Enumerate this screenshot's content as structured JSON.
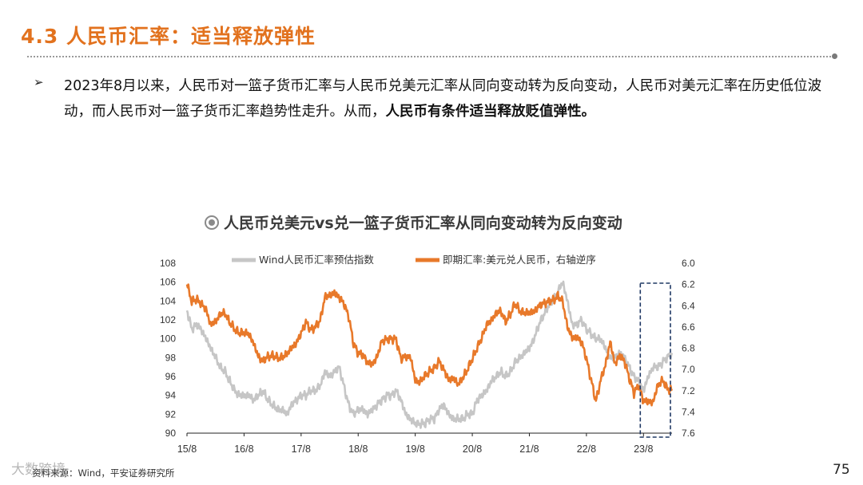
{
  "slide": {
    "title": "4.3 人民币汇率：适当释放弹性",
    "bullet_plain": "2023年8月以来，人民币对一篮子货币汇率与人民币兑美元汇率从同向变动转为反向变动，人民币对美元汇率在历史低位波动，而人民币对一篮子货币汇率趋势性走升。从而，",
    "bullet_emphasis": "人民币有条件适当释放贬值弹性。",
    "source_note": "资料来源：Wind，平安证券研究所",
    "watermark": "大数跨境",
    "page_number": "75"
  },
  "colors": {
    "accent": "#e2721e",
    "series_index": "#c6c6c6",
    "series_spot": "#e8792a",
    "highlight_box": "#1f3864"
  },
  "chart_data": {
    "type": "line",
    "title": "人民币兑美元vs兑一篮子货币汇率从同向变动转为反向变动",
    "x_ticks": [
      "15/8",
      "16/8",
      "17/8",
      "18/8",
      "19/8",
      "20/8",
      "21/8",
      "22/8",
      "23/8"
    ],
    "x_range": [
      "2015-08",
      "2024-02"
    ],
    "y_left": {
      "ticks": [
        "108",
        "106",
        "104",
        "102",
        "100",
        "98",
        "96",
        "94",
        "92",
        "90"
      ],
      "range": [
        90,
        108
      ]
    },
    "y_right": {
      "ticks": [
        "6.0",
        "6.2",
        "6.4",
        "6.6",
        "6.8",
        "7.0",
        "7.2",
        "7.4",
        "7.6"
      ],
      "range": [
        6.0,
        7.6
      ],
      "inverted": true
    },
    "legend_placement": "top",
    "grid": false,
    "series": [
      {
        "name": "Wind人民币汇率预估指数",
        "axis": "left",
        "points": [
          [
            "2015-08",
            103.0
          ],
          [
            "2015-09",
            101.0
          ],
          [
            "2015-10",
            101.5
          ],
          [
            "2015-11",
            101.0
          ],
          [
            "2015-12",
            100.0
          ],
          [
            "2016-01",
            99.0
          ],
          [
            "2016-02",
            98.0
          ],
          [
            "2016-03",
            97.0
          ],
          [
            "2016-04",
            96.5
          ],
          [
            "2016-05",
            95.5
          ],
          [
            "2016-06",
            94.5
          ],
          [
            "2016-07",
            94.0
          ],
          [
            "2016-08",
            94.0
          ],
          [
            "2016-09",
            94.0
          ],
          [
            "2016-10",
            93.5
          ],
          [
            "2016-11",
            94.0
          ],
          [
            "2016-12",
            94.5
          ],
          [
            "2017-01",
            93.5
          ],
          [
            "2017-02",
            93.0
          ],
          [
            "2017-03",
            92.5
          ],
          [
            "2017-04",
            92.5
          ],
          [
            "2017-05",
            92.0
          ],
          [
            "2017-06",
            93.0
          ],
          [
            "2017-07",
            93.5
          ],
          [
            "2017-08",
            94.0
          ],
          [
            "2017-09",
            94.0
          ],
          [
            "2017-10",
            94.5
          ],
          [
            "2017-11",
            94.5
          ],
          [
            "2017-12",
            95.0
          ],
          [
            "2018-01",
            96.5
          ],
          [
            "2018-02",
            96.0
          ],
          [
            "2018-03",
            96.5
          ],
          [
            "2018-04",
            97.0
          ],
          [
            "2018-05",
            95.0
          ],
          [
            "2018-06",
            93.0
          ],
          [
            "2018-07",
            92.0
          ],
          [
            "2018-08",
            92.5
          ],
          [
            "2018-09",
            92.5
          ],
          [
            "2018-10",
            92.0
          ],
          [
            "2018-11",
            92.5
          ],
          [
            "2018-12",
            93.0
          ],
          [
            "2019-01",
            93.5
          ],
          [
            "2019-02",
            94.0
          ],
          [
            "2019-03",
            94.0
          ],
          [
            "2019-04",
            94.5
          ],
          [
            "2019-05",
            93.5
          ],
          [
            "2019-06",
            92.0
          ],
          [
            "2019-07",
            91.5
          ],
          [
            "2019-08",
            91.0
          ],
          [
            "2019-09",
            91.0
          ],
          [
            "2019-10",
            91.0
          ],
          [
            "2019-11",
            91.5
          ],
          [
            "2019-12",
            91.5
          ],
          [
            "2020-01",
            92.5
          ],
          [
            "2020-02",
            93.0
          ],
          [
            "2020-03",
            92.0
          ],
          [
            "2020-04",
            91.5
          ],
          [
            "2020-05",
            91.5
          ],
          [
            "2020-06",
            91.5
          ],
          [
            "2020-07",
            92.0
          ],
          [
            "2020-08",
            92.0
          ],
          [
            "2020-09",
            93.5
          ],
          [
            "2020-10",
            94.0
          ],
          [
            "2020-11",
            94.5
          ],
          [
            "2020-12",
            95.5
          ],
          [
            "2021-01",
            96.0
          ],
          [
            "2021-02",
            96.5
          ],
          [
            "2021-03",
            96.0
          ],
          [
            "2021-04",
            96.5
          ],
          [
            "2021-05",
            97.5
          ],
          [
            "2021-06",
            98.0
          ],
          [
            "2021-07",
            98.5
          ],
          [
            "2021-08",
            99.0
          ],
          [
            "2021-09",
            100.0
          ],
          [
            "2021-10",
            101.5
          ],
          [
            "2021-11",
            102.5
          ],
          [
            "2021-12",
            103.5
          ],
          [
            "2022-01",
            104.0
          ],
          [
            "2022-02",
            105.0
          ],
          [
            "2022-03",
            106.0
          ],
          [
            "2022-04",
            104.0
          ],
          [
            "2022-05",
            101.5
          ],
          [
            "2022-06",
            101.5
          ],
          [
            "2022-07",
            102.0
          ],
          [
            "2022-08",
            101.0
          ],
          [
            "2022-09",
            100.5
          ],
          [
            "2022-10",
            100.0
          ],
          [
            "2022-11",
            100.0
          ],
          [
            "2022-12",
            99.0
          ],
          [
            "2023-01",
            98.0
          ],
          [
            "2023-02",
            98.0
          ],
          [
            "2023-03",
            98.5
          ],
          [
            "2023-04",
            98.0
          ],
          [
            "2023-05",
            97.0
          ],
          [
            "2023-06",
            96.0
          ],
          [
            "2023-07",
            95.5
          ],
          [
            "2023-08",
            94.5
          ],
          [
            "2023-09",
            96.0
          ],
          [
            "2023-10",
            97.0
          ],
          [
            "2023-11",
            97.0
          ],
          [
            "2023-12",
            97.5
          ],
          [
            "2024-01",
            98.0
          ],
          [
            "2024-02",
            98.5
          ]
        ]
      },
      {
        "name": "即期汇率:美元兑人民币，右轴逆序",
        "axis": "right",
        "points": [
          [
            "2015-08",
            6.2
          ],
          [
            "2015-09",
            6.36
          ],
          [
            "2015-10",
            6.34
          ],
          [
            "2015-11",
            6.38
          ],
          [
            "2015-12",
            6.44
          ],
          [
            "2016-01",
            6.58
          ],
          [
            "2016-02",
            6.55
          ],
          [
            "2016-03",
            6.48
          ],
          [
            "2016-04",
            6.47
          ],
          [
            "2016-05",
            6.56
          ],
          [
            "2016-06",
            6.62
          ],
          [
            "2016-07",
            6.66
          ],
          [
            "2016-08",
            6.65
          ],
          [
            "2016-09",
            6.67
          ],
          [
            "2016-10",
            6.75
          ],
          [
            "2016-11",
            6.88
          ],
          [
            "2016-12",
            6.92
          ],
          [
            "2017-01",
            6.88
          ],
          [
            "2017-02",
            6.87
          ],
          [
            "2017-03",
            6.89
          ],
          [
            "2017-04",
            6.89
          ],
          [
            "2017-05",
            6.85
          ],
          [
            "2017-06",
            6.8
          ],
          [
            "2017-07",
            6.75
          ],
          [
            "2017-08",
            6.66
          ],
          [
            "2017-09",
            6.55
          ],
          [
            "2017-10",
            6.63
          ],
          [
            "2017-11",
            6.6
          ],
          [
            "2017-12",
            6.54
          ],
          [
            "2018-01",
            6.32
          ],
          [
            "2018-02",
            6.3
          ],
          [
            "2018-03",
            6.28
          ],
          [
            "2018-04",
            6.32
          ],
          [
            "2018-05",
            6.38
          ],
          [
            "2018-06",
            6.5
          ],
          [
            "2018-07",
            6.75
          ],
          [
            "2018-08",
            6.85
          ],
          [
            "2018-09",
            6.86
          ],
          [
            "2018-10",
            6.94
          ],
          [
            "2018-11",
            6.95
          ],
          [
            "2018-12",
            6.88
          ],
          [
            "2019-01",
            6.73
          ],
          [
            "2019-02",
            6.72
          ],
          [
            "2019-03",
            6.71
          ],
          [
            "2019-04",
            6.72
          ],
          [
            "2019-05",
            6.9
          ],
          [
            "2019-06",
            6.88
          ],
          [
            "2019-07",
            6.88
          ],
          [
            "2019-08",
            7.1
          ],
          [
            "2019-09",
            7.12
          ],
          [
            "2019-10",
            7.06
          ],
          [
            "2019-11",
            7.02
          ],
          [
            "2019-12",
            6.99
          ],
          [
            "2020-01",
            6.92
          ],
          [
            "2020-02",
            7.0
          ],
          [
            "2020-03",
            7.1
          ],
          [
            "2020-04",
            7.08
          ],
          [
            "2020-05",
            7.14
          ],
          [
            "2020-06",
            7.08
          ],
          [
            "2020-07",
            7.0
          ],
          [
            "2020-08",
            6.9
          ],
          [
            "2020-09",
            6.8
          ],
          [
            "2020-10",
            6.7
          ],
          [
            "2020-11",
            6.58
          ],
          [
            "2020-12",
            6.54
          ],
          [
            "2021-01",
            6.47
          ],
          [
            "2021-02",
            6.45
          ],
          [
            "2021-03",
            6.55
          ],
          [
            "2021-04",
            6.48
          ],
          [
            "2021-05",
            6.38
          ],
          [
            "2021-06",
            6.45
          ],
          [
            "2021-07",
            6.47
          ],
          [
            "2021-08",
            6.46
          ],
          [
            "2021-09",
            6.46
          ],
          [
            "2021-10",
            6.4
          ],
          [
            "2021-11",
            6.38
          ],
          [
            "2021-12",
            6.36
          ],
          [
            "2022-01",
            6.35
          ],
          [
            "2022-02",
            6.31
          ],
          [
            "2022-03",
            6.36
          ],
          [
            "2022-04",
            6.6
          ],
          [
            "2022-05",
            6.7
          ],
          [
            "2022-06",
            6.7
          ],
          [
            "2022-07",
            6.74
          ],
          [
            "2022-08",
            6.9
          ],
          [
            "2022-09",
            7.1
          ],
          [
            "2022-10",
            7.3
          ],
          [
            "2022-11",
            7.1
          ],
          [
            "2022-12",
            6.96
          ],
          [
            "2023-01",
            6.74
          ],
          [
            "2023-02",
            6.95
          ],
          [
            "2023-03",
            6.87
          ],
          [
            "2023-04",
            6.92
          ],
          [
            "2023-05",
            7.08
          ],
          [
            "2023-06",
            7.22
          ],
          [
            "2023-07",
            7.15
          ],
          [
            "2023-08",
            7.3
          ],
          [
            "2023-09",
            7.3
          ],
          [
            "2023-10",
            7.31
          ],
          [
            "2023-11",
            7.15
          ],
          [
            "2023-12",
            7.1
          ],
          [
            "2024-01",
            7.18
          ],
          [
            "2024-02",
            7.2
          ]
        ]
      }
    ],
    "highlight_box": {
      "from": "2023-08",
      "to": "2024-02",
      "style": "dashed"
    }
  }
}
